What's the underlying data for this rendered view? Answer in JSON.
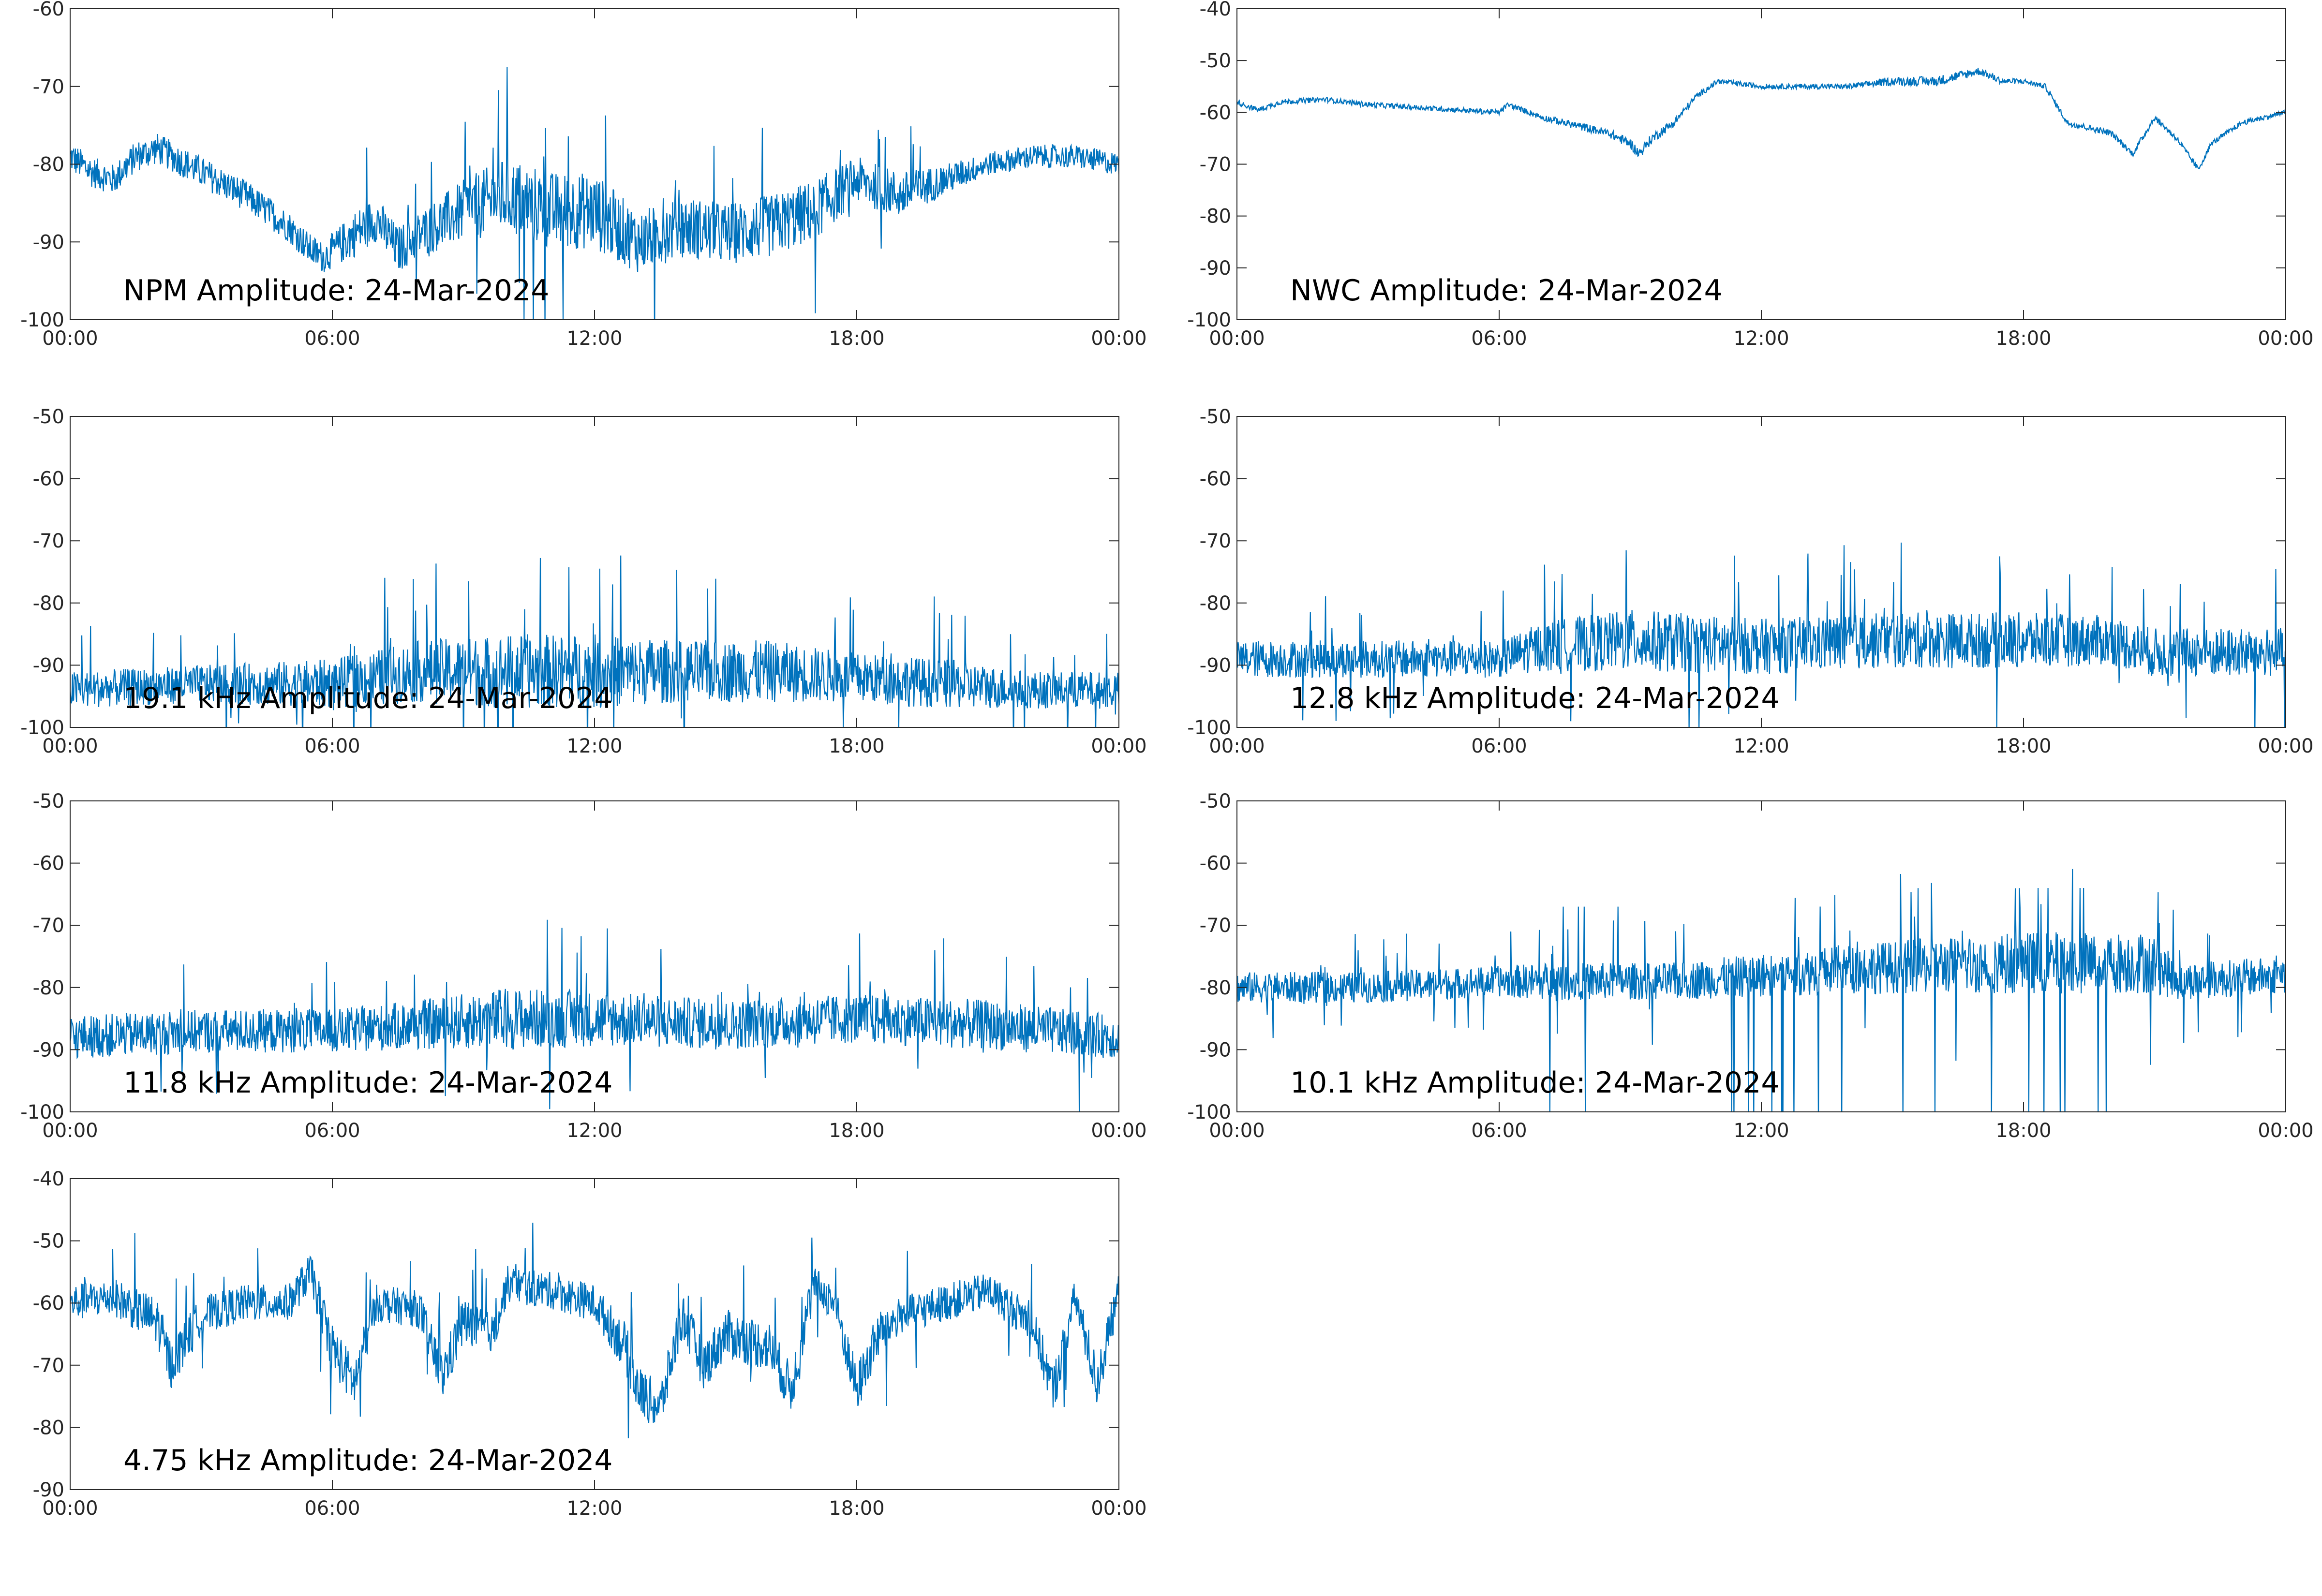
{
  "colors": {
    "series": "#0072BD",
    "axis": "#262626",
    "background": "#ffffff"
  },
  "chart_data": [
    {
      "type": "line",
      "title": "NPM Amplitude: 24-Mar-2024",
      "x_tick_labels": [
        "00:00",
        "06:00",
        "12:00",
        "18:00",
        "00:00"
      ],
      "xlim": [
        "00:00",
        "24:00"
      ],
      "ylim": [
        -100,
        -60
      ],
      "y_ticks": [
        -60,
        -70,
        -80,
        -90,
        -100
      ],
      "grid": false,
      "series": [
        {
          "x": [
            0,
            0.5,
            1,
            1.5,
            2,
            3,
            4,
            5,
            5.5,
            5.8,
            6.5,
            7,
            7.5,
            8,
            9,
            10,
            11,
            12,
            13,
            14,
            15,
            16,
            17,
            18,
            19,
            20,
            21,
            22,
            23,
            24
          ],
          "y": [
            -79,
            -81,
            -82,
            -79,
            -78,
            -81,
            -84,
            -88,
            -91,
            -92,
            -89,
            -87,
            -91,
            -89,
            -86,
            -84,
            -86,
            -86,
            -90,
            -88,
            -89,
            -88,
            -86,
            -82,
            -84,
            -82,
            -80,
            -79,
            -79,
            -80
          ],
          "spread": [
            2,
            2,
            2,
            2,
            2,
            2,
            2,
            2,
            2,
            2,
            3,
            3,
            3,
            3,
            4,
            5,
            5,
            5,
            4,
            4,
            4,
            4,
            4,
            3,
            3,
            2,
            1.5,
            1.5,
            1.5,
            1.5
          ]
        }
      ]
    },
    {
      "type": "line",
      "title": "NWC Amplitude: 24-Mar-2024",
      "x_tick_labels": [
        "00:00",
        "06:00",
        "12:00",
        "18:00",
        "00:00"
      ],
      "xlim": [
        "00:00",
        "24:00"
      ],
      "ylim": [
        -100,
        -40
      ],
      "y_ticks": [
        -40,
        -50,
        -60,
        -70,
        -80,
        -90,
        -100
      ],
      "grid": false,
      "series": [
        {
          "x": [
            0,
            0.3,
            0.5,
            1,
            2,
            3,
            4,
            5,
            6,
            6.2,
            7,
            8,
            8.5,
            9,
            9.2,
            9.5,
            10,
            10.5,
            11,
            12,
            13,
            14,
            15,
            16,
            17,
            17.5,
            18,
            18.5,
            19,
            20,
            20.5,
            21,
            21.5,
            22,
            22.3,
            23,
            24
          ],
          "y": [
            -58,
            -59,
            -59.5,
            -58,
            -57.5,
            -58.5,
            -59,
            -59.5,
            -60,
            -58.5,
            -61,
            -63,
            -64,
            -66,
            -68,
            -65,
            -62,
            -57,
            -54,
            -55,
            -55,
            -55,
            -54,
            -54,
            -52,
            -54,
            -54,
            -55,
            -62,
            -64,
            -68,
            -61,
            -65,
            -71,
            -66,
            -62,
            -60
          ],
          "spread": [
            0.5,
            0.5,
            0.5,
            0.5,
            0.5,
            0.5,
            0.5,
            0.5,
            0.5,
            0.5,
            0.6,
            0.8,
            0.8,
            1,
            1,
            1,
            0.8,
            0.6,
            0.5,
            0.5,
            0.5,
            0.5,
            0.8,
            1,
            0.8,
            0.6,
            0.5,
            0.5,
            0.6,
            0.6,
            0.6,
            0.6,
            0.6,
            0.6,
            0.5,
            0.5,
            0.5
          ]
        }
      ]
    },
    {
      "type": "line",
      "title": "19.1 kHz Amplitude: 24-Mar-2024",
      "x_tick_labels": [
        "00:00",
        "06:00",
        "12:00",
        "18:00",
        "00:00"
      ],
      "xlim": [
        "00:00",
        "24:00"
      ],
      "ylim": [
        -100,
        -50
      ],
      "y_ticks": [
        -50,
        -60,
        -70,
        -80,
        -90,
        -100
      ],
      "grid": false,
      "series": [
        {
          "x": [
            0,
            3,
            6,
            8,
            10,
            12,
            14,
            16,
            18,
            20,
            22,
            24
          ],
          "y": [
            -94,
            -93,
            -93,
            -91,
            -91,
            -91,
            -91,
            -91,
            -92,
            -93,
            -94,
            -94
          ],
          "spread": [
            3,
            3,
            4,
            5,
            6,
            6,
            5,
            5,
            4,
            4,
            3,
            3
          ]
        }
      ]
    },
    {
      "type": "line",
      "title": "12.8 kHz Amplitude: 24-Mar-2024",
      "x_tick_labels": [
        "00:00",
        "06:00",
        "12:00",
        "18:00",
        "00:00"
      ],
      "xlim": [
        "00:00",
        "24:00"
      ],
      "ylim": [
        -100,
        -50
      ],
      "y_ticks": [
        -50,
        -60,
        -70,
        -80,
        -90,
        -100
      ],
      "grid": false,
      "series": [
        {
          "x": [
            0,
            3,
            6,
            7,
            9,
            12,
            15,
            18,
            20,
            21,
            24
          ],
          "y": [
            -89,
            -89,
            -89,
            -87,
            -86,
            -87,
            -86,
            -86,
            -86,
            -88,
            -88
          ],
          "spread": [
            3,
            3,
            3,
            4,
            5,
            4.5,
            4.5,
            4.5,
            4,
            4,
            4
          ]
        }
      ]
    },
    {
      "type": "line",
      "title": "11.8 kHz Amplitude: 24-Mar-2024",
      "x_tick_labels": [
        "00:00",
        "06:00",
        "12:00",
        "18:00",
        "00:00"
      ],
      "xlim": [
        "00:00",
        "24:00"
      ],
      "ylim": [
        -100,
        -50
      ],
      "y_ticks": [
        -50,
        -60,
        -70,
        -80,
        -90,
        -100
      ],
      "grid": false,
      "series": [
        {
          "x": [
            0,
            3,
            6,
            8,
            10,
            12,
            15,
            18,
            21,
            24
          ],
          "y": [
            -88,
            -87,
            -87,
            -86,
            -85,
            -85,
            -86,
            -85,
            -86,
            -88
          ],
          "spread": [
            3.5,
            3.5,
            3.5,
            4,
            5,
            4.5,
            4,
            4,
            4,
            3.5
          ]
        }
      ]
    },
    {
      "type": "line",
      "title": "10.1 kHz Amplitude: 24-Mar-2024",
      "x_tick_labels": [
        "00:00",
        "06:00",
        "12:00",
        "18:00",
        "00:00"
      ],
      "xlim": [
        "00:00",
        "24:00"
      ],
      "ylim": [
        -100,
        -50
      ],
      "y_ticks": [
        -50,
        -60,
        -70,
        -80,
        -90,
        -100
      ],
      "grid": false,
      "series": [
        {
          "x": [
            0,
            3,
            6,
            7,
            10,
            14,
            18,
            21,
            21.5,
            24
          ],
          "y": [
            -80,
            -80,
            -79,
            -79,
            -79,
            -77,
            -76,
            -76,
            -79,
            -78
          ],
          "spread": [
            2.5,
            2.5,
            2.5,
            3,
            3,
            4,
            5,
            5,
            3,
            3
          ]
        }
      ]
    },
    {
      "type": "line",
      "title": "4.75 kHz Amplitude: 24-Mar-2024",
      "x_tick_labels": [
        "00:00",
        "06:00",
        "12:00",
        "18:00",
        "00:00"
      ],
      "xlim": [
        "00:00",
        "24:00"
      ],
      "ylim": [
        -90,
        -40
      ],
      "y_ticks": [
        -40,
        -50,
        -60,
        -70,
        -80,
        -90
      ],
      "grid": false,
      "series": [
        {
          "x": [
            0,
            1,
            2,
            2.3,
            3,
            4,
            5,
            5.5,
            6,
            6.5,
            7,
            8,
            8.5,
            9,
            9.7,
            10,
            11,
            12,
            12.7,
            13,
            13.5,
            14,
            14.5,
            15,
            16,
            16.5,
            17,
            17.5,
            18,
            18.5,
            19,
            20,
            21,
            22,
            22.5,
            23,
            23.5,
            24
          ],
          "y": [
            -60,
            -59,
            -63,
            -70,
            -62,
            -60,
            -60,
            -55,
            -67,
            -73,
            -60,
            -61,
            -72,
            -63,
            -65,
            -57,
            -58,
            -60,
            -67,
            -74,
            -77,
            -62,
            -70,
            -65,
            -67,
            -74,
            -57,
            -60,
            -74,
            -65,
            -62,
            -60,
            -58,
            -63,
            -74,
            -59,
            -73,
            -58
          ],
          "spread": [
            3,
            3,
            4,
            4,
            3,
            3,
            3,
            3,
            4,
            4,
            3,
            3,
            4,
            4,
            3,
            3,
            3,
            3,
            4,
            4,
            4,
            4,
            4,
            4,
            4,
            4,
            3,
            3,
            4,
            4,
            3,
            3,
            3,
            3,
            4,
            3,
            4,
            3
          ]
        }
      ]
    }
  ]
}
